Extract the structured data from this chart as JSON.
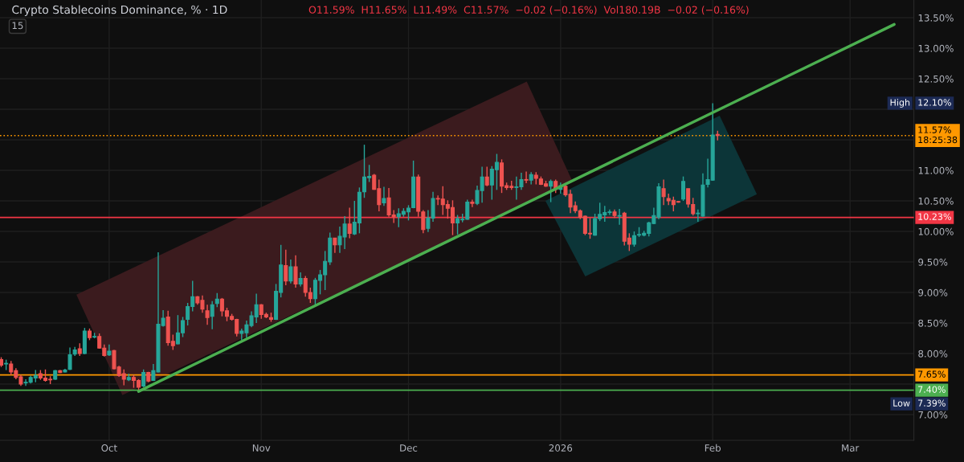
{
  "chart_data": {
    "type": "candlestick",
    "title": "Crypto Stablecoins Dominance, % · 1D",
    "subtitle": "O11.59%  H11.65%  L11.49%  C11.57%  −0.02 (−0.16%)  Vol180.19B  −0.02 (−0.16%)",
    "x": [
      "2025-09-09",
      "2025-09-10",
      "2025-09-11",
      "2025-09-12",
      "2025-09-13",
      "2025-09-14",
      "2025-09-15",
      "2025-09-16",
      "2025-09-17",
      "2025-09-18",
      "2025-09-19",
      "2025-09-20",
      "2025-09-21",
      "2025-09-22",
      "2025-09-23",
      "2025-09-24",
      "2025-09-25",
      "2025-09-26",
      "2025-09-27",
      "2025-09-28",
      "2025-09-29",
      "2025-09-30",
      "2025-10-01",
      "2025-10-02",
      "2025-10-03",
      "2025-10-04",
      "2025-10-05",
      "2025-10-06",
      "2025-10-07",
      "2025-10-08",
      "2025-10-09",
      "2025-10-10",
      "2025-10-11",
      "2025-10-12",
      "2025-10-13",
      "2025-10-14",
      "2025-10-15",
      "2025-10-16",
      "2025-10-17",
      "2025-10-18",
      "2025-10-19",
      "2025-10-20",
      "2025-10-21",
      "2025-10-22",
      "2025-10-23",
      "2025-10-24",
      "2025-10-25",
      "2025-10-26",
      "2025-10-27",
      "2025-10-28",
      "2025-10-29",
      "2025-10-30",
      "2025-10-31",
      "2025-11-01",
      "2025-11-02",
      "2025-11-03",
      "2025-11-04",
      "2025-11-05",
      "2025-11-06",
      "2025-11-07",
      "2025-11-08",
      "2025-11-09",
      "2025-11-10",
      "2025-11-11",
      "2025-11-12",
      "2025-11-13",
      "2025-11-14",
      "2025-11-15",
      "2025-11-16",
      "2025-11-17",
      "2025-11-18",
      "2025-11-19",
      "2025-11-20",
      "2025-11-21",
      "2025-11-22",
      "2025-11-23",
      "2025-11-24",
      "2025-11-25",
      "2025-11-26",
      "2025-11-27",
      "2025-11-28",
      "2025-11-29",
      "2025-11-30",
      "2025-12-01",
      "2025-12-02",
      "2025-12-03",
      "2025-12-04",
      "2025-12-05",
      "2025-12-06",
      "2025-12-07",
      "2025-12-08",
      "2025-12-09",
      "2025-12-10",
      "2025-12-11",
      "2025-12-12",
      "2025-12-13",
      "2025-12-14",
      "2025-12-15",
      "2025-12-16",
      "2025-12-17",
      "2025-12-18",
      "2025-12-19",
      "2025-12-20",
      "2025-12-21",
      "2025-12-22",
      "2025-12-23",
      "2025-12-24",
      "2025-12-25",
      "2025-12-26",
      "2025-12-27",
      "2025-12-28",
      "2025-12-29",
      "2025-12-30",
      "2025-12-31",
      "2026-01-01",
      "2026-01-02",
      "2026-01-03",
      "2026-01-04",
      "2026-01-05",
      "2026-01-06",
      "2026-01-07",
      "2026-01-08",
      "2026-01-09",
      "2026-01-10",
      "2026-01-11",
      "2026-01-12",
      "2026-01-13",
      "2026-01-14",
      "2026-01-15",
      "2026-01-16",
      "2026-01-17",
      "2026-01-18",
      "2026-01-19",
      "2026-01-20",
      "2026-01-21",
      "2026-01-22",
      "2026-01-23",
      "2026-01-24",
      "2026-01-25",
      "2026-01-26",
      "2026-01-27",
      "2026-01-28",
      "2026-01-29",
      "2026-01-30",
      "2026-01-31",
      "2026-02-01",
      "2026-02-02"
    ],
    "ohlc": [
      [
        7.9,
        7.94,
        7.78,
        7.81
      ],
      [
        7.83,
        7.9,
        7.73,
        7.84
      ],
      [
        7.83,
        7.88,
        7.65,
        7.7
      ],
      [
        7.72,
        7.76,
        7.58,
        7.61
      ],
      [
        7.62,
        7.65,
        7.47,
        7.5
      ],
      [
        7.52,
        7.58,
        7.47,
        7.53
      ],
      [
        7.53,
        7.64,
        7.51,
        7.61
      ],
      [
        7.6,
        7.73,
        7.53,
        7.64
      ],
      [
        7.67,
        7.73,
        7.57,
        7.6
      ],
      [
        7.6,
        7.74,
        7.54,
        7.56
      ],
      [
        7.58,
        7.63,
        7.5,
        7.57
      ],
      [
        7.58,
        7.73,
        7.57,
        7.72
      ],
      [
        7.72,
        7.73,
        7.68,
        7.69
      ],
      [
        7.7,
        7.75,
        7.69,
        7.73
      ],
      [
        7.74,
        8.1,
        7.73,
        7.98
      ],
      [
        7.99,
        8.11,
        7.96,
        8.06
      ],
      [
        8.08,
        8.17,
        7.96,
        8.0
      ],
      [
        8.0,
        8.42,
        7.99,
        8.37
      ],
      [
        8.37,
        8.41,
        8.22,
        8.26
      ],
      [
        8.27,
        8.34,
        8.25,
        8.28
      ],
      [
        8.28,
        8.33,
        8.08,
        8.09
      ],
      [
        8.09,
        8.15,
        7.95,
        7.97
      ],
      [
        7.98,
        8.15,
        7.96,
        8.04
      ],
      [
        8.05,
        8.06,
        7.74,
        7.75
      ],
      [
        7.78,
        7.8,
        7.62,
        7.64
      ],
      [
        7.67,
        7.74,
        7.48,
        7.58
      ],
      [
        7.57,
        7.67,
        7.55,
        7.61
      ],
      [
        7.61,
        7.65,
        7.44,
        7.56
      ],
      [
        7.56,
        7.58,
        7.39,
        7.45
      ],
      [
        7.47,
        7.74,
        7.45,
        7.69
      ],
      [
        7.69,
        7.7,
        7.53,
        7.55
      ],
      [
        7.56,
        7.83,
        7.55,
        7.72
      ],
      [
        7.7,
        9.66,
        7.69,
        8.48
      ],
      [
        8.46,
        8.71,
        8.44,
        8.58
      ],
      [
        8.6,
        8.7,
        8.13,
        8.18
      ],
      [
        8.2,
        8.31,
        8.06,
        8.13
      ],
      [
        8.16,
        8.63,
        8.15,
        8.34
      ],
      [
        8.34,
        8.6,
        8.27,
        8.54
      ],
      [
        8.56,
        8.83,
        8.46,
        8.77
      ],
      [
        8.77,
        9.19,
        8.69,
        8.93
      ],
      [
        8.93,
        8.94,
        8.8,
        8.83
      ],
      [
        8.87,
        8.95,
        8.67,
        8.73
      ],
      [
        8.7,
        8.8,
        8.47,
        8.59
      ],
      [
        8.61,
        8.86,
        8.4,
        8.8
      ],
      [
        8.82,
        8.99,
        8.76,
        8.89
      ],
      [
        8.89,
        8.91,
        8.61,
        8.7
      ],
      [
        8.7,
        8.75,
        8.53,
        8.61
      ],
      [
        8.61,
        8.65,
        8.54,
        8.56
      ],
      [
        8.56,
        8.57,
        8.28,
        8.33
      ],
      [
        8.33,
        8.41,
        8.22,
        8.37
      ],
      [
        8.34,
        8.54,
        8.26,
        8.47
      ],
      [
        8.46,
        8.69,
        8.43,
        8.62
      ],
      [
        8.6,
        8.98,
        8.5,
        8.8
      ],
      [
        8.8,
        8.81,
        8.57,
        8.64
      ],
      [
        8.64,
        8.67,
        8.58,
        8.6
      ],
      [
        8.59,
        8.67,
        8.52,
        8.56
      ],
      [
        8.56,
        9.14,
        8.55,
        9.02
      ],
      [
        9.0,
        9.78,
        8.92,
        9.45
      ],
      [
        9.44,
        9.7,
        9.12,
        9.19
      ],
      [
        9.19,
        9.54,
        9.15,
        9.42
      ],
      [
        9.42,
        9.61,
        9.08,
        9.14
      ],
      [
        9.14,
        9.33,
        9.1,
        9.23
      ],
      [
        9.23,
        9.27,
        8.93,
        9.0
      ],
      [
        9.0,
        9.08,
        8.83,
        8.9
      ],
      [
        8.9,
        9.24,
        8.79,
        9.2
      ],
      [
        9.2,
        9.37,
        8.97,
        9.29
      ],
      [
        9.29,
        9.68,
        9.04,
        9.51
      ],
      [
        9.5,
        9.98,
        9.45,
        9.89
      ],
      [
        9.89,
        9.89,
        9.65,
        9.78
      ],
      [
        9.78,
        10.08,
        9.65,
        9.92
      ],
      [
        9.91,
        10.25,
        9.71,
        10.12
      ],
      [
        10.12,
        10.39,
        9.89,
        9.97
      ],
      [
        9.96,
        10.5,
        9.94,
        10.15
      ],
      [
        10.14,
        10.72,
        9.97,
        10.64
      ],
      [
        10.65,
        11.42,
        10.55,
        10.89
      ],
      [
        10.88,
        11.09,
        10.81,
        10.9
      ],
      [
        10.92,
        10.94,
        10.68,
        10.69
      ],
      [
        10.7,
        10.85,
        10.33,
        10.44
      ],
      [
        10.47,
        10.73,
        10.42,
        10.54
      ],
      [
        10.55,
        10.71,
        10.24,
        10.27
      ],
      [
        10.27,
        10.35,
        10.14,
        10.24
      ],
      [
        10.24,
        10.38,
        10.07,
        10.29
      ],
      [
        10.28,
        10.38,
        10.24,
        10.33
      ],
      [
        10.32,
        10.43,
        10.18,
        10.38
      ],
      [
        10.39,
        11.16,
        10.38,
        10.89
      ],
      [
        10.89,
        10.93,
        10.24,
        10.33
      ],
      [
        10.32,
        10.35,
        9.97,
        10.03
      ],
      [
        10.05,
        10.35,
        9.99,
        10.22
      ],
      [
        10.22,
        10.65,
        10.16,
        10.54
      ],
      [
        10.54,
        10.59,
        10.43,
        10.53
      ],
      [
        10.53,
        10.74,
        10.27,
        10.44
      ],
      [
        10.44,
        10.51,
        10.21,
        10.38
      ],
      [
        10.39,
        10.51,
        9.94,
        10.14
      ],
      [
        10.14,
        10.27,
        9.95,
        10.21
      ],
      [
        10.19,
        10.29,
        10.15,
        10.2
      ],
      [
        10.2,
        10.52,
        10.19,
        10.48
      ],
      [
        10.48,
        10.52,
        10.4,
        10.46
      ],
      [
        10.46,
        10.75,
        10.43,
        10.67
      ],
      [
        10.67,
        11.06,
        10.47,
        10.89
      ],
      [
        10.89,
        11.06,
        10.74,
        10.76
      ],
      [
        10.76,
        11.07,
        10.52,
        11.02
      ],
      [
        11.01,
        11.27,
        10.68,
        11.13
      ],
      [
        11.12,
        11.18,
        10.63,
        10.74
      ],
      [
        10.75,
        10.8,
        10.68,
        10.72
      ],
      [
        10.74,
        10.83,
        10.68,
        10.72
      ],
      [
        10.72,
        10.9,
        10.52,
        10.73
      ],
      [
        10.73,
        10.96,
        10.68,
        10.85
      ],
      [
        10.85,
        10.98,
        10.79,
        10.84
      ],
      [
        10.84,
        10.97,
        10.77,
        10.93
      ],
      [
        10.92,
        10.97,
        10.77,
        10.87
      ],
      [
        10.86,
        10.9,
        10.76,
        10.77
      ],
      [
        10.78,
        10.83,
        10.73,
        10.74
      ],
      [
        10.74,
        10.85,
        10.48,
        10.82
      ],
      [
        10.82,
        10.85,
        10.63,
        10.69
      ],
      [
        10.69,
        10.8,
        10.62,
        10.75
      ],
      [
        10.74,
        10.77,
        10.57,
        10.6
      ],
      [
        10.61,
        10.68,
        10.3,
        10.4
      ],
      [
        10.42,
        10.49,
        10.3,
        10.34
      ],
      [
        10.34,
        10.36,
        10.2,
        10.23
      ],
      [
        10.25,
        10.26,
        9.94,
        9.97
      ],
      [
        9.97,
        10.22,
        9.88,
        9.96
      ],
      [
        9.94,
        10.29,
        9.93,
        10.21
      ],
      [
        10.21,
        10.47,
        10.17,
        10.28
      ],
      [
        10.27,
        10.42,
        10.16,
        10.31
      ],
      [
        10.31,
        10.36,
        10.27,
        10.32
      ],
      [
        10.32,
        10.36,
        10.22,
        10.26
      ],
      [
        10.25,
        10.37,
        10.11,
        10.26
      ],
      [
        10.3,
        10.32,
        9.77,
        9.84
      ],
      [
        9.89,
        9.97,
        9.68,
        9.79
      ],
      [
        9.79,
        10.0,
        9.75,
        9.93
      ],
      [
        9.94,
        10.07,
        9.91,
        9.95
      ],
      [
        9.94,
        10.01,
        9.92,
        9.97
      ],
      [
        9.97,
        10.16,
        9.92,
        10.14
      ],
      [
        10.13,
        10.39,
        10.12,
        10.26
      ],
      [
        10.23,
        10.79,
        10.2,
        10.73
      ],
      [
        10.7,
        10.85,
        10.43,
        10.57
      ],
      [
        10.54,
        10.62,
        10.43,
        10.5
      ],
      [
        10.51,
        10.57,
        10.33,
        10.44
      ],
      [
        10.49,
        10.5,
        10.47,
        10.48
      ],
      [
        10.53,
        10.9,
        10.5,
        10.82
      ],
      [
        10.7,
        10.7,
        10.39,
        10.45
      ],
      [
        10.44,
        10.55,
        10.26,
        10.29
      ],
      [
        10.29,
        10.36,
        10.16,
        10.3
      ],
      [
        10.25,
        10.95,
        10.24,
        10.76
      ],
      [
        10.77,
        11.19,
        10.72,
        10.85
      ],
      [
        10.84,
        12.1,
        10.83,
        11.58
      ],
      [
        11.59,
        11.65,
        11.49,
        11.57
      ]
    ],
    "colors": [
      "#ef5350",
      "#26a69a",
      "#ef5350",
      "#ef5350",
      "#ef5350",
      "#26a69a",
      "#26a69a",
      "#26a69a",
      "#ef5350",
      "#ef5350",
      "#ef5350",
      "#26a69a",
      "#ef5350",
      "#26a69a",
      "#26a69a",
      "#26a69a",
      "#ef5350",
      "#26a69a",
      "#ef5350",
      "#26a69a",
      "#ef5350",
      "#ef5350",
      "#26a69a",
      "#ef5350",
      "#ef5350",
      "#ef5350",
      "#26a69a",
      "#ef5350",
      "#ef5350",
      "#26a69a",
      "#ef5350",
      "#26a69a",
      "#26a69a",
      "#26a69a",
      "#ef5350",
      "#ef5350",
      "#26a69a",
      "#26a69a",
      "#26a69a",
      "#26a69a",
      "#ef5350",
      "#ef5350",
      "#ef5350",
      "#26a69a",
      "#26a69a",
      "#ef5350",
      "#ef5350",
      "#ef5350",
      "#ef5350",
      "#26a69a",
      "#26a69a",
      "#26a69a",
      "#26a69a",
      "#ef5350",
      "#ef5350",
      "#ef5350",
      "#26a69a",
      "#26a69a",
      "#ef5350",
      "#26a69a",
      "#ef5350",
      "#26a69a",
      "#ef5350",
      "#ef5350",
      "#26a69a",
      "#26a69a",
      "#26a69a",
      "#26a69a",
      "#ef5350",
      "#26a69a",
      "#26a69a",
      "#ef5350",
      "#26a69a",
      "#26a69a",
      "#26a69a",
      "#26a69a",
      "#ef5350",
      "#ef5350",
      "#26a69a",
      "#ef5350",
      "#ef5350",
      "#26a69a",
      "#26a69a",
      "#26a69a",
      "#26a69a",
      "#ef5350",
      "#ef5350",
      "#26a69a",
      "#26a69a",
      "#ef5350",
      "#ef5350",
      "#ef5350",
      "#ef5350",
      "#26a69a",
      "#26a69a",
      "#26a69a",
      "#ef5350",
      "#26a69a",
      "#26a69a",
      "#ef5350",
      "#26a69a",
      "#26a69a",
      "#ef5350",
      "#ef5350",
      "#ef5350",
      "#26a69a",
      "#26a69a",
      "#ef5350",
      "#26a69a",
      "#ef5350",
      "#ef5350",
      "#ef5350",
      "#26a69a",
      "#ef5350",
      "#26a69a",
      "#ef5350",
      "#ef5350",
      "#ef5350",
      "#ef5350",
      "#ef5350",
      "#ef5350",
      "#26a69a",
      "#26a69a",
      "#26a69a",
      "#26a69a",
      "#ef5350",
      "#26a69a",
      "#ef5350",
      "#ef5350",
      "#26a69a",
      "#26a69a",
      "#26a69a",
      "#26a69a",
      "#26a69a",
      "#26a69a",
      "#ef5350",
      "#ef5350",
      "#ef5350",
      "#ef5350",
      "#26a69a",
      "#ef5350",
      "#ef5350",
      "#26a69a",
      "#26a69a",
      "#26a69a",
      "#26a69a",
      "#ef5350"
    ],
    "series": [
      {
        "type": "line",
        "color": "#4caf50",
        "x": [
          "2025-10-07",
          "2026-03-10"
        ],
        "values": [
          7.38,
          13.39
        ]
      }
    ],
    "xlim": [
      "2025-09-08T18:00",
      "2026-03-14"
    ],
    "xticks": [
      {
        "value": "2025-10-01",
        "label": "Oct"
      },
      {
        "value": "2025-11-01",
        "label": "Nov"
      },
      {
        "value": "2025-12-01",
        "label": "Dec"
      },
      {
        "value": "2026-01-01",
        "label": "2026"
      },
      {
        "value": "2026-02-01",
        "label": "Feb"
      },
      {
        "value": "2026-03-01",
        "label": "Mar"
      }
    ],
    "ylim": [
      6.58,
      13.79
    ],
    "yticks": [
      {
        "value": 7.0,
        "label": "7.00%"
      },
      {
        "value": 7.5,
        "label": null
      },
      {
        "value": 8.0,
        "label": "8.00%"
      },
      {
        "value": 8.5,
        "label": "8.50%"
      },
      {
        "value": 9.0,
        "label": "9.00%"
      },
      {
        "value": 9.5,
        "label": "9.50%"
      },
      {
        "value": 10.0,
        "label": "10.00%"
      },
      {
        "value": 10.5,
        "label": "10.50%"
      },
      {
        "value": 11.0,
        "label": "11.00%"
      },
      {
        "value": 11.5,
        "label": null
      },
      {
        "value": 12.0,
        "label": null
      },
      {
        "value": 12.5,
        "label": "12.50%"
      },
      {
        "value": 13.0,
        "label": "13.00%"
      },
      {
        "value": 13.5,
        "label": "13.50%"
      }
    ],
    "ref_lines": [
      {
        "axis": "y",
        "value": 10.23,
        "label": "10.23%",
        "color": "#f23645",
        "line_style": "solid"
      },
      {
        "axis": "y",
        "value": 7.65,
        "label": "7.65%",
        "color": "#ff9800",
        "line_style": "solid"
      },
      {
        "axis": "y",
        "value": 7.4,
        "label": "7.40%",
        "color": "#4caf50",
        "line_style": "solid"
      },
      {
        "axis": "y",
        "value": 11.57,
        "label": "11.57%\n18:25:38",
        "color": "#ff9800",
        "line_style": "dotted"
      }
    ],
    "annotations": [
      "12.10%",
      "High",
      "7.39%",
      "Low",
      "15"
    ],
    "grid": true,
    "legend": false
  }
}
